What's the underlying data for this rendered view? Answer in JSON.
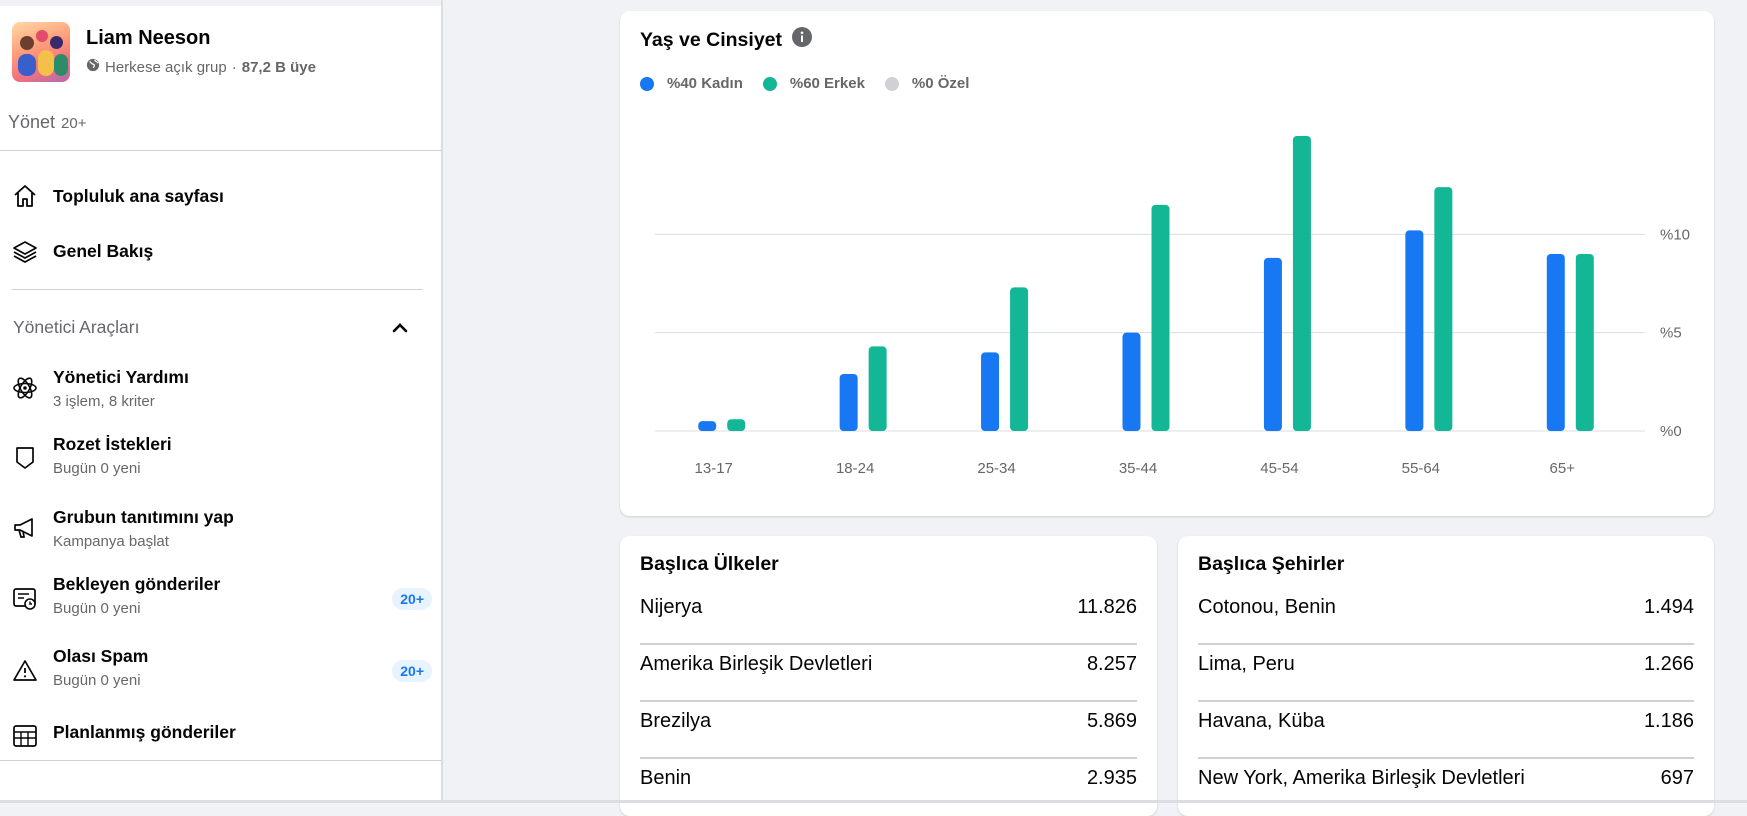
{
  "group": {
    "name": "Liam Neeson",
    "privacy": "Herkese açık grup",
    "separator": "·",
    "members": "87,2 B üye"
  },
  "manage": {
    "label": "Yönet",
    "count": "20+"
  },
  "nav": [
    {
      "label": "Topluluk ana sayfası",
      "icon": "home-icon"
    },
    {
      "label": "Genel Bakış",
      "icon": "layers-icon"
    }
  ],
  "admin_tools": {
    "title": "Yönetici Araçları",
    "items": [
      {
        "title": "Yönetici Yardımı",
        "sub": "3 işlem, 8 kriter",
        "icon": "atom-icon",
        "badge": ""
      },
      {
        "title": "Rozet İstekleri",
        "sub": "Bugün 0 yeni",
        "icon": "badge-shield-icon",
        "badge": ""
      },
      {
        "title": "Grubun tanıtımını yap",
        "sub": "Kampanya başlat",
        "icon": "megaphone-icon",
        "badge": ""
      },
      {
        "title": "Bekleyen gönderiler",
        "sub": "Bugün 0 yeni",
        "icon": "pending-posts-icon",
        "badge": "20+"
      },
      {
        "title": "Olası Spam",
        "sub": "Bugün 0 yeni",
        "icon": "warning-icon",
        "badge": "20+"
      },
      {
        "title": "Planlanmış gönderiler",
        "sub": "",
        "icon": "calendar-icon",
        "badge": ""
      }
    ]
  },
  "age_gender": {
    "title": "Yaş ve Cinsiyet",
    "legend": [
      {
        "label": "%40 Kadın",
        "color": "#1877f2"
      },
      {
        "label": "%60 Erkek",
        "color": "#13b795"
      },
      {
        "label": "%0 Özel",
        "color": "#cfd1d5"
      }
    ]
  },
  "chart_data": {
    "type": "bar",
    "title": "Yaş ve Cinsiyet",
    "categories": [
      "13-17",
      "18-24",
      "25-34",
      "35-44",
      "45-54",
      "55-64",
      "65+"
    ],
    "series": [
      {
        "name": "%40 Kadın",
        "color": "#1877f2",
        "values": [
          0.5,
          2.9,
          4.0,
          5.0,
          8.8,
          10.2,
          9.0
        ]
      },
      {
        "name": "%60 Erkek",
        "color": "#13b795",
        "values": [
          0.6,
          4.3,
          7.3,
          11.5,
          15.0,
          12.4,
          9.0
        ]
      }
    ],
    "y_ticks": [
      "%0",
      "%5",
      "%10"
    ],
    "ylim": [
      0,
      15
    ],
    "y_axis_side": "right"
  },
  "countries": {
    "title": "Başlıca Ülkeler",
    "rows": [
      {
        "name": "Nijerya",
        "value": "11.826"
      },
      {
        "name": "Amerika Birleşik Devletleri",
        "value": "8.257"
      },
      {
        "name": "Brezilya",
        "value": "5.869"
      },
      {
        "name": "Benin",
        "value": "2.935"
      }
    ]
  },
  "cities": {
    "title": "Başlıca Şehirler",
    "rows": [
      {
        "name": "Cotonou, Benin",
        "value": "1.494"
      },
      {
        "name": "Lima, Peru",
        "value": "1.266"
      },
      {
        "name": "Havana, Küba",
        "value": "1.186"
      },
      {
        "name": "New York, Amerika Birleşik Devletleri",
        "value": "697"
      }
    ]
  }
}
